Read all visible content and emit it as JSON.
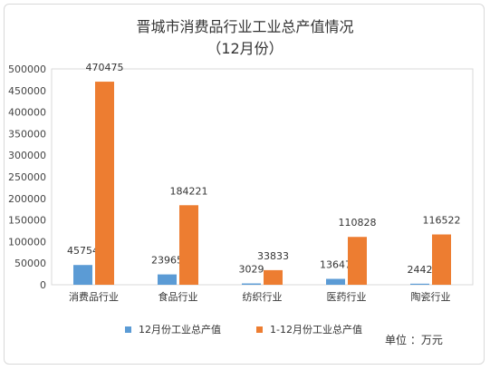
{
  "chart_data": {
    "type": "bar",
    "title": "晋城市消费品行业工业总产值情况",
    "subtitle": "（12月份）",
    "categories": [
      "消费品行业",
      "食品行业",
      "纺织行业",
      "医药行业",
      "陶瓷行业"
    ],
    "series": [
      {
        "name": "12月份工业总产值",
        "color": "#5b9bd5",
        "values": [
          45754,
          23965,
          3029,
          13647,
          2442
        ]
      },
      {
        "name": "1-12月份工业总产值",
        "color": "#ed7d31",
        "values": [
          470475,
          184221,
          33833,
          110828,
          116522
        ]
      }
    ],
    "ylim": [
      0,
      500000
    ],
    "yticks": [
      0,
      50000,
      100000,
      150000,
      200000,
      250000,
      300000,
      350000,
      400000,
      450000,
      500000
    ],
    "grid": false,
    "legend": "bottom",
    "unit_note": "单位 ：万元"
  }
}
